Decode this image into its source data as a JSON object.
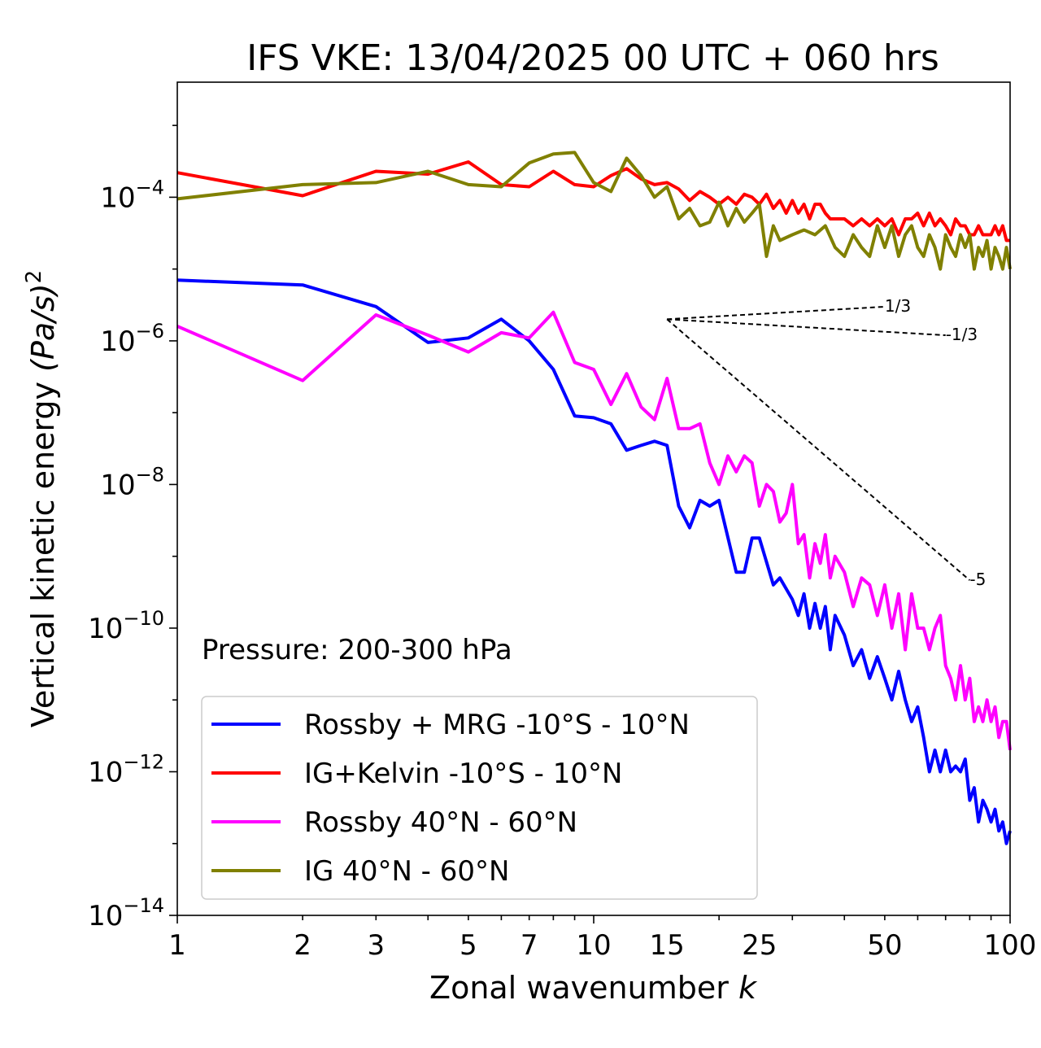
{
  "chart_data": {
    "type": "line",
    "title": "IFS VKE: 13/04/2025 00 UTC + 060 hrs",
    "xlabel": "Zonal wavenumber",
    "xlabel_var": "k",
    "ylabel": "Vertical kinetic energy",
    "ylabel_unit": "(Pa/s)",
    "ylabel_exp": "2",
    "xscale": "log",
    "yscale": "log",
    "xlim": [
      1,
      100
    ],
    "ylim": [
      1e-14,
      0.004
    ],
    "x_ticks": [
      1,
      2,
      3,
      5,
      7,
      10,
      15,
      25,
      50,
      100
    ],
    "y_ticks": [
      {
        "base": "10",
        "exp": "−4",
        "value": 0.0001
      },
      {
        "base": "10",
        "exp": "−6",
        "value": 1e-06
      },
      {
        "base": "10",
        "exp": "−8",
        "value": 1e-08
      },
      {
        "base": "10",
        "exp": "−10",
        "value": 1e-10
      },
      {
        "base": "10",
        "exp": "−12",
        "value": 1e-12
      },
      {
        "base": "10",
        "exp": "−14",
        "value": 1e-14
      }
    ],
    "annotation": "Pressure: 200-300 hPa",
    "legend_position": "lower-left",
    "reference_slopes": [
      {
        "label": "1/3",
        "slope": 0.3333,
        "x0": 15,
        "y0": 2e-06,
        "x1": 50
      },
      {
        "label": "-1/3",
        "slope": -0.3333,
        "x0": 15,
        "y0": 2e-06,
        "x1": 70
      },
      {
        "label": "-5",
        "slope": -5,
        "x0": 15,
        "y0": 2e-06,
        "x1": 80
      }
    ],
    "series": [
      {
        "name": "Rossby + MRG -10°S - 10°N",
        "color": "#0000ff",
        "points": [
          [
            1,
            7e-06
          ],
          [
            2,
            6e-06
          ],
          [
            3,
            3e-06
          ],
          [
            4,
            9.5e-07
          ],
          [
            5,
            1.1e-06
          ],
          [
            6,
            2e-06
          ],
          [
            7,
            1e-06
          ],
          [
            8,
            4e-07
          ],
          [
            9,
            9e-08
          ],
          [
            10,
            8.5e-08
          ],
          [
            11,
            7e-08
          ],
          [
            12,
            3e-08
          ],
          [
            13,
            3.5e-08
          ],
          [
            14,
            4e-08
          ],
          [
            15,
            3.5e-08
          ],
          [
            16,
            5e-09
          ],
          [
            17,
            2.5e-09
          ],
          [
            18,
            6e-09
          ],
          [
            19,
            5e-09
          ],
          [
            20,
            6e-09
          ],
          [
            22,
            6e-10
          ],
          [
            23,
            6e-10
          ],
          [
            24,
            1.8e-09
          ],
          [
            25,
            1.8e-09
          ],
          [
            27,
            4e-10
          ],
          [
            28,
            5e-10
          ],
          [
            30,
            2.5e-10
          ],
          [
            31,
            1.5e-10
          ],
          [
            32,
            3e-10
          ],
          [
            33,
            1e-10
          ],
          [
            34,
            2.2e-10
          ],
          [
            35,
            1e-10
          ],
          [
            36,
            2e-10
          ],
          [
            37,
            5e-11
          ],
          [
            38,
            1.5e-10
          ],
          [
            40,
            8e-11
          ],
          [
            42,
            3e-11
          ],
          [
            44,
            5e-11
          ],
          [
            46,
            2e-11
          ],
          [
            48,
            4e-11
          ],
          [
            50,
            2e-11
          ],
          [
            52,
            1e-11
          ],
          [
            54,
            2.5e-11
          ],
          [
            56,
            1e-11
          ],
          [
            58,
            5e-12
          ],
          [
            60,
            8e-12
          ],
          [
            62,
            3e-12
          ],
          [
            64,
            1e-12
          ],
          [
            66,
            2e-12
          ],
          [
            68,
            1e-12
          ],
          [
            70,
            2e-12
          ],
          [
            72,
            1e-12
          ],
          [
            74,
            1.2e-12
          ],
          [
            76,
            1e-12
          ],
          [
            78,
            1.5e-12
          ],
          [
            80,
            4e-13
          ],
          [
            82,
            6e-13
          ],
          [
            84,
            2e-13
          ],
          [
            86,
            4e-13
          ],
          [
            88,
            3e-13
          ],
          [
            90,
            2e-13
          ],
          [
            92,
            3e-13
          ],
          [
            94,
            1.5e-13
          ],
          [
            96,
            2e-13
          ],
          [
            98,
            1e-13
          ],
          [
            100,
            1.5e-13
          ]
        ]
      },
      {
        "name": "IG+Kelvin -10°S - 10°N",
        "color": "#ff0000",
        "points": [
          [
            1,
            0.00022
          ],
          [
            2,
            0.000105
          ],
          [
            3,
            0.00023
          ],
          [
            4,
            0.00021
          ],
          [
            5,
            0.00031
          ],
          [
            6,
            0.00015
          ],
          [
            7,
            0.00014
          ],
          [
            8,
            0.00023
          ],
          [
            9,
            0.00015
          ],
          [
            10,
            0.00014
          ],
          [
            11,
            0.0002
          ],
          [
            12,
            0.00025
          ],
          [
            13,
            0.00018
          ],
          [
            14,
            0.00015
          ],
          [
            15,
            0.00016
          ],
          [
            16,
            0.00013
          ],
          [
            17,
            9e-05
          ],
          [
            18,
            0.00012
          ],
          [
            19,
            0.0001
          ],
          [
            20,
            8e-05
          ],
          [
            21,
            0.0001
          ],
          [
            22,
            8e-05
          ],
          [
            23,
            0.00011
          ],
          [
            24,
            0.0001
          ],
          [
            25,
            8e-05
          ],
          [
            26,
            0.00011
          ],
          [
            27,
            7e-05
          ],
          [
            28,
            9e-05
          ],
          [
            29,
            6e-05
          ],
          [
            30,
            9e-05
          ],
          [
            31,
            6e-05
          ],
          [
            32,
            8e-05
          ],
          [
            33,
            5e-05
          ],
          [
            34,
            8e-05
          ],
          [
            35,
            8e-05
          ],
          [
            36,
            6e-05
          ],
          [
            37,
            5e-05
          ],
          [
            38,
            5e-05
          ],
          [
            40,
            5e-05
          ],
          [
            42,
            4e-05
          ],
          [
            44,
            5e-05
          ],
          [
            46,
            4e-05
          ],
          [
            48,
            5e-05
          ],
          [
            50,
            4e-05
          ],
          [
            52,
            5e-05
          ],
          [
            54,
            3e-05
          ],
          [
            56,
            5e-05
          ],
          [
            58,
            5e-05
          ],
          [
            60,
            6e-05
          ],
          [
            62,
            4e-05
          ],
          [
            64,
            6e-05
          ],
          [
            66,
            4e-05
          ],
          [
            68,
            5e-05
          ],
          [
            70,
            4e-05
          ],
          [
            72,
            3e-05
          ],
          [
            74,
            5e-05
          ],
          [
            76,
            4e-05
          ],
          [
            78,
            4e-05
          ],
          [
            80,
            3e-05
          ],
          [
            82,
            3e-05
          ],
          [
            84,
            4e-05
          ],
          [
            86,
            3e-05
          ],
          [
            88,
            3e-05
          ],
          [
            90,
            3e-05
          ],
          [
            92,
            4e-05
          ],
          [
            94,
            3e-05
          ],
          [
            96,
            4e-05
          ],
          [
            98,
            2.5e-05
          ],
          [
            100,
            2.5e-05
          ]
        ]
      },
      {
        "name": "Rossby 40°N - 60°N",
        "color": "#ff00ff",
        "points": [
          [
            1,
            1.6e-06
          ],
          [
            2,
            2.8e-07
          ],
          [
            3,
            2.3e-06
          ],
          [
            4,
            1.2e-06
          ],
          [
            5,
            7e-07
          ],
          [
            6,
            1.3e-06
          ],
          [
            7,
            1.1e-06
          ],
          [
            8,
            2.5e-06
          ],
          [
            9,
            5e-07
          ],
          [
            10,
            4e-07
          ],
          [
            11,
            1.3e-07
          ],
          [
            12,
            3.5e-07
          ],
          [
            13,
            1.2e-07
          ],
          [
            14,
            8e-08
          ],
          [
            15,
            3e-07
          ],
          [
            16,
            6e-08
          ],
          [
            17,
            6e-08
          ],
          [
            18,
            7e-08
          ],
          [
            19,
            2e-08
          ],
          [
            20,
            1e-08
          ],
          [
            21,
            2.5e-08
          ],
          [
            22,
            1.5e-08
          ],
          [
            23,
            2.5e-08
          ],
          [
            24,
            2e-08
          ],
          [
            25,
            5e-09
          ],
          [
            26,
            1e-08
          ],
          [
            27,
            8e-09
          ],
          [
            28,
            3e-09
          ],
          [
            29,
            4e-09
          ],
          [
            30,
            1e-08
          ],
          [
            31,
            1.5e-09
          ],
          [
            32,
            2e-09
          ],
          [
            33,
            5e-10
          ],
          [
            34,
            1.5e-09
          ],
          [
            35,
            8e-10
          ],
          [
            36,
            2e-09
          ],
          [
            37,
            5e-10
          ],
          [
            38,
            1e-09
          ],
          [
            40,
            6e-10
          ],
          [
            42,
            2e-10
          ],
          [
            44,
            5e-10
          ],
          [
            46,
            4e-10
          ],
          [
            48,
            1.5e-10
          ],
          [
            50,
            4e-10
          ],
          [
            52,
            1e-10
          ],
          [
            54,
            3e-10
          ],
          [
            56,
            5e-11
          ],
          [
            58,
            3e-10
          ],
          [
            60,
            1e-10
          ],
          [
            62,
            1e-10
          ],
          [
            64,
            5e-11
          ],
          [
            66,
            1e-10
          ],
          [
            68,
            1.5e-10
          ],
          [
            70,
            3e-11
          ],
          [
            72,
            2e-11
          ],
          [
            74,
            1e-11
          ],
          [
            76,
            3e-11
          ],
          [
            78,
            1e-11
          ],
          [
            80,
            2e-11
          ],
          [
            82,
            5e-12
          ],
          [
            84,
            8e-12
          ],
          [
            86,
            5e-12
          ],
          [
            88,
            1e-11
          ],
          [
            90,
            5e-12
          ],
          [
            92,
            8e-12
          ],
          [
            94,
            3e-12
          ],
          [
            96,
            5e-12
          ],
          [
            98,
            5e-12
          ],
          [
            100,
            2e-12
          ]
        ]
      },
      {
        "name": "IG 40°N - 60°N",
        "color": "#808000",
        "points": [
          [
            1,
            9.5e-05
          ],
          [
            2,
            0.00015
          ],
          [
            3,
            0.00016
          ],
          [
            4,
            0.00023
          ],
          [
            5,
            0.00015
          ],
          [
            6,
            0.00014
          ],
          [
            7,
            0.0003
          ],
          [
            8,
            0.0004
          ],
          [
            9,
            0.00042
          ],
          [
            10,
            0.00016
          ],
          [
            11,
            0.00012
          ],
          [
            12,
            0.00035
          ],
          [
            13,
            0.0002
          ],
          [
            14,
            0.0001
          ],
          [
            15,
            0.00014
          ],
          [
            16,
            5e-05
          ],
          [
            17,
            7e-05
          ],
          [
            18,
            4e-05
          ],
          [
            19,
            4.5e-05
          ],
          [
            20,
            8.5e-05
          ],
          [
            21,
            4e-05
          ],
          [
            22,
            7e-05
          ],
          [
            23,
            4.5e-05
          ],
          [
            24,
            6e-05
          ],
          [
            25,
            8e-05
          ],
          [
            26,
            1.5e-05
          ],
          [
            27,
            4e-05
          ],
          [
            28,
            2.5e-05
          ],
          [
            30,
            3e-05
          ],
          [
            32,
            3.5e-05
          ],
          [
            34,
            3e-05
          ],
          [
            36,
            4e-05
          ],
          [
            38,
            2e-05
          ],
          [
            40,
            1.5e-05
          ],
          [
            42,
            3e-05
          ],
          [
            44,
            2e-05
          ],
          [
            46,
            1.5e-05
          ],
          [
            48,
            4e-05
          ],
          [
            50,
            2e-05
          ],
          [
            52,
            4e-05
          ],
          [
            54,
            1.5e-05
          ],
          [
            56,
            3e-05
          ],
          [
            58,
            4e-05
          ],
          [
            60,
            2e-05
          ],
          [
            62,
            1.5e-05
          ],
          [
            64,
            3e-05
          ],
          [
            66,
            2e-05
          ],
          [
            68,
            1e-05
          ],
          [
            70,
            3e-05
          ],
          [
            72,
            2e-05
          ],
          [
            74,
            1.5e-05
          ],
          [
            76,
            3e-05
          ],
          [
            78,
            2e-05
          ],
          [
            80,
            3e-05
          ],
          [
            82,
            1e-05
          ],
          [
            84,
            2e-05
          ],
          [
            86,
            1.5e-05
          ],
          [
            88,
            2.5e-05
          ],
          [
            90,
            1e-05
          ],
          [
            92,
            2e-05
          ],
          [
            94,
            1.5e-05
          ],
          [
            96,
            1e-05
          ],
          [
            98,
            2e-05
          ],
          [
            100,
            1e-05
          ]
        ]
      }
    ]
  }
}
